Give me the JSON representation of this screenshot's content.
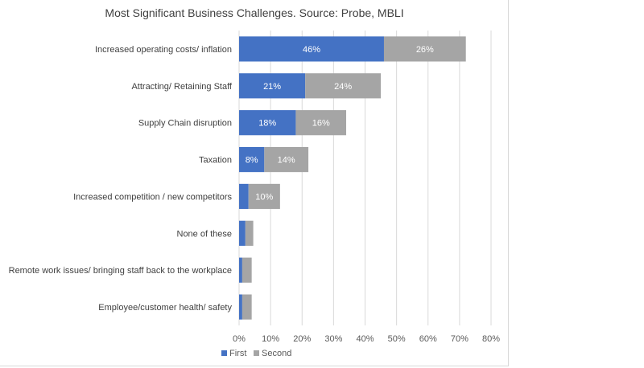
{
  "chart_data": {
    "type": "bar",
    "orientation": "horizontal",
    "stacked": true,
    "title": "Most Significant Business Challenges. Source: Probe, MBLI",
    "xlabel": "",
    "ylabel": "",
    "xlim": [
      0,
      80
    ],
    "x_ticks": [
      "0%",
      "10%",
      "20%",
      "30%",
      "40%",
      "50%",
      "60%",
      "70%",
      "80%"
    ],
    "grid": true,
    "legend_position": "bottom",
    "categories": [
      "Increased operating costs/ inflation",
      "Attracting/ Retaining Staff",
      "Supply Chain disruption",
      "Taxation",
      "Increased competition / new competitors",
      "None of these",
      "Remote work issues/ bringing staff back to the workplace",
      "Employee/customer health/ safety"
    ],
    "series": [
      {
        "name": "First",
        "color": "#4472c4",
        "values": [
          46,
          21,
          18,
          8,
          3,
          2,
          1,
          1
        ],
        "labels": [
          "46%",
          "21%",
          "18%",
          "8%",
          "",
          "",
          "",
          ""
        ]
      },
      {
        "name": "Second",
        "color": "#a5a5a5",
        "values": [
          26,
          24,
          16,
          14,
          10,
          2.5,
          3,
          3
        ],
        "labels": [
          "26%",
          "24%",
          "16%",
          "14%",
          "10%",
          "",
          "",
          ""
        ]
      }
    ]
  }
}
